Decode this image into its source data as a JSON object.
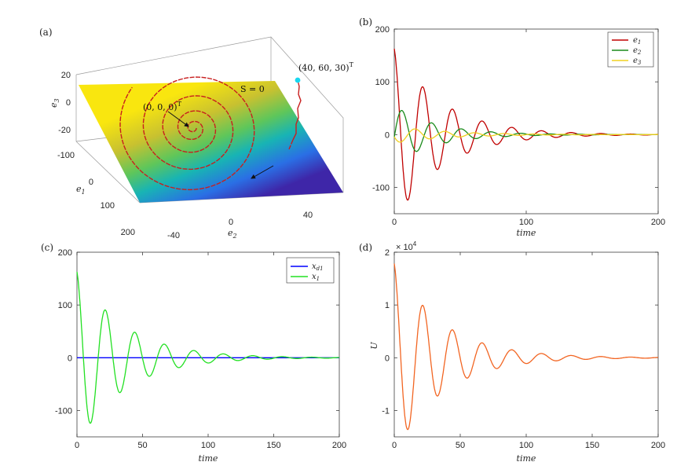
{
  "chart_data": [
    {
      "panel": "(a)",
      "type": "surface",
      "axes": {
        "x": "e_2",
        "y": "e_1",
        "z": "e_3"
      },
      "x_ticks": [
        "-40",
        "0",
        "40"
      ],
      "y_ticks": [
        "-100",
        "0",
        "100",
        "200"
      ],
      "z_ticks": [
        "20",
        "0",
        "-20"
      ],
      "annotations": {
        "surface": "S = 0",
        "origin": "(0, 0, 0)",
        "origin_sup": "T",
        "start": "(40, 60, 30)",
        "start_sup": "T"
      },
      "colormap": [
        "#3e26a8",
        "#2a6fe5",
        "#18b4b4",
        "#5fc65a",
        "#c8c130",
        "#f9e60f"
      ]
    },
    {
      "panel": "(b)",
      "type": "line",
      "xlabel": "time",
      "ylabel": "",
      "xlim": [
        0,
        200
      ],
      "ylim": [
        -150,
        200
      ],
      "x_ticks": [
        0,
        100,
        200
      ],
      "y_ticks": [
        200,
        100,
        0,
        -100
      ],
      "legend_position": "top-right",
      "series": [
        {
          "name": "e",
          "sub": "1",
          "color": "#c00000",
          "amp": 166,
          "phase": 1.77,
          "decay": 0.028,
          "period": 22.5,
          "offset": 0
        },
        {
          "name": "e",
          "sub": "2",
          "color": "#1a8a1a",
          "amp": 55,
          "phase": -0.1,
          "decay": 0.032,
          "period": 22.5,
          "offset": 0
        },
        {
          "name": "e",
          "sub": "3",
          "color": "#f0d020",
          "amp": 16,
          "phase": 3.4,
          "decay": 0.025,
          "period": 22.5,
          "offset": 0
        }
      ]
    },
    {
      "panel": "(c)",
      "type": "line",
      "xlabel": "time",
      "ylabel": "",
      "xlim": [
        0,
        200
      ],
      "ylim": [
        -150,
        200
      ],
      "x_ticks": [
        0,
        50,
        100,
        150,
        200
      ],
      "y_ticks": [
        200,
        100,
        0,
        -100
      ],
      "legend_position": "top-right",
      "series": [
        {
          "name": "x",
          "sub": "d1",
          "color": "#0000ff",
          "amp": 0,
          "phase": 0,
          "decay": 0,
          "period": 22.5,
          "offset": 0
        },
        {
          "name": "x",
          "sub": "1",
          "color": "#22e022",
          "amp": 166,
          "phase": 1.77,
          "decay": 0.028,
          "period": 22.5,
          "offset": 0
        }
      ]
    },
    {
      "panel": "(d)",
      "type": "line",
      "xlabel": "time",
      "ylabel": "U",
      "xlim": [
        0,
        200
      ],
      "ylim": [
        -1.5,
        2
      ],
      "x_ticks": [
        0,
        50,
        100,
        150,
        200
      ],
      "y_ticks": [
        "2",
        "1",
        "0",
        "-1"
      ],
      "scale_base": "× 10",
      "scale_exp": "4",
      "series": [
        {
          "name": "U",
          "sub": "",
          "color": "#f26522",
          "amp": 1.82,
          "phase": 1.77,
          "decay": 0.028,
          "period": 22.5,
          "offset": 0
        }
      ]
    }
  ]
}
